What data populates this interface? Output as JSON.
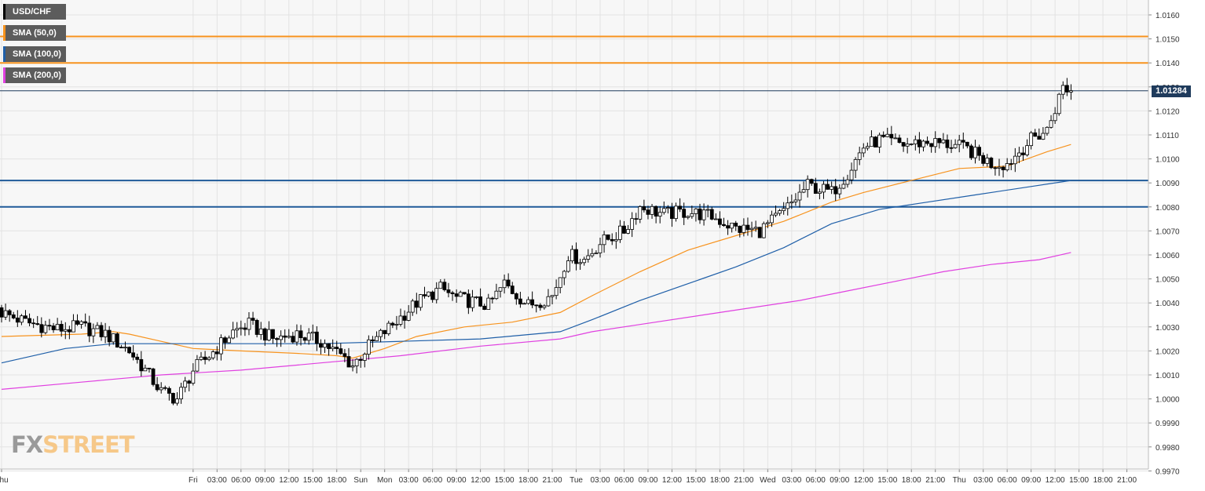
{
  "chart_data": {
    "type": "candlestick",
    "symbol": "USD/CHF",
    "legend": [
      {
        "label": "USD/CHF",
        "color": "#000000"
      },
      {
        "label": "SMA (50,0)",
        "color": "#f7931e"
      },
      {
        "label": "SMA (100,0)",
        "color": "#1f5fa8"
      },
      {
        "label": "SMA (200,0)",
        "color": "#e040e0"
      }
    ],
    "ylim": [
      0.9968,
      1.0163
    ],
    "y_ticks": [
      "1.0160",
      "1.0150",
      "1.0140",
      "1.0130",
      "1.0120",
      "1.0110",
      "1.0100",
      "1.0090",
      "1.0080",
      "1.0070",
      "1.0060",
      "1.0050",
      "1.0040",
      "1.0030",
      "1.0020",
      "1.0010",
      "1.0000",
      "0.9990",
      "0.9980",
      "0.9970"
    ],
    "x_ticks": [
      {
        "label": "Thu",
        "t": 0
      },
      {
        "label": "Fri",
        "t": 24
      },
      {
        "label": "03:00",
        "t": 27
      },
      {
        "label": "06:00",
        "t": 30
      },
      {
        "label": "09:00",
        "t": 33
      },
      {
        "label": "12:00",
        "t": 36
      },
      {
        "label": "15:00",
        "t": 39
      },
      {
        "label": "18:00",
        "t": 42
      },
      {
        "label": "Sun",
        "t": 45
      },
      {
        "label": "Mon",
        "t": 48
      },
      {
        "label": "03:00",
        "t": 51
      },
      {
        "label": "06:00",
        "t": 54
      },
      {
        "label": "09:00",
        "t": 57
      },
      {
        "label": "12:00",
        "t": 60
      },
      {
        "label": "15:00",
        "t": 63
      },
      {
        "label": "18:00",
        "t": 66
      },
      {
        "label": "21:00",
        "t": 69
      },
      {
        "label": "Tue",
        "t": 72
      },
      {
        "label": "03:00",
        "t": 75
      },
      {
        "label": "06:00",
        "t": 78
      },
      {
        "label": "09:00",
        "t": 81
      },
      {
        "label": "12:00",
        "t": 84
      },
      {
        "label": "15:00",
        "t": 87
      },
      {
        "label": "18:00",
        "t": 90
      },
      {
        "label": "21:00",
        "t": 93
      },
      {
        "label": "Wed",
        "t": 96
      },
      {
        "label": "03:00",
        "t": 99
      },
      {
        "label": "06:00",
        "t": 102
      },
      {
        "label": "09:00",
        "t": 105
      },
      {
        "label": "12:00",
        "t": 108
      },
      {
        "label": "15:00",
        "t": 111
      },
      {
        "label": "18:00",
        "t": 114
      },
      {
        "label": "21:00",
        "t": 117
      },
      {
        "label": "Thu",
        "t": 120
      },
      {
        "label": "03:00",
        "t": 123
      },
      {
        "label": "06:00",
        "t": 126
      },
      {
        "label": "09:00",
        "t": 129
      },
      {
        "label": "12:00",
        "t": 132
      },
      {
        "label": "15:00",
        "t": 135
      },
      {
        "label": "18:00",
        "t": 138
      },
      {
        "label": "21:00",
        "t": 141
      }
    ],
    "horizontal_levels": [
      {
        "value": 1.0151,
        "color": "#f7931e"
      },
      {
        "value": 1.014,
        "color": "#f7931e"
      },
      {
        "value": 1.0091,
        "color": "#1f5a99"
      },
      {
        "value": 1.008,
        "color": "#1f5a99"
      }
    ],
    "last_price": {
      "value": 1.01284,
      "label": "1.01284"
    },
    "close_anchors": [
      [
        0,
        1.0036
      ],
      [
        3,
        1.0032
      ],
      [
        7,
        1.0029
      ],
      [
        10,
        1.003
      ],
      [
        13,
        1.0027
      ],
      [
        16,
        1.002
      ],
      [
        18,
        1.0012
      ],
      [
        20,
        1.0003
      ],
      [
        22,
        1.0
      ],
      [
        24,
        1.0012
      ],
      [
        26,
        1.0018
      ],
      [
        29,
        1.0028
      ],
      [
        31,
        1.0031
      ],
      [
        34,
        1.0025
      ],
      [
        37,
        1.0027
      ],
      [
        40,
        1.0024
      ],
      [
        43,
        1.0017
      ],
      [
        44,
        1.0014
      ],
      [
        46,
        1.0022
      ],
      [
        48,
        1.0028
      ],
      [
        50,
        1.0034
      ],
      [
        52,
        1.004
      ],
      [
        55,
        1.0046
      ],
      [
        57,
        1.0042
      ],
      [
        61,
        1.0039
      ],
      [
        63,
        1.0048
      ],
      [
        66,
        1.0039
      ],
      [
        69,
        1.0043
      ],
      [
        71,
        1.006
      ],
      [
        73,
        1.0058
      ],
      [
        75,
        1.0065
      ],
      [
        78,
        1.007
      ],
      [
        80,
        1.008
      ],
      [
        83,
        1.0077
      ],
      [
        86,
        1.0078
      ],
      [
        89,
        1.0076
      ],
      [
        92,
        1.0071
      ],
      [
        95,
        1.007
      ],
      [
        98,
        1.0078
      ],
      [
        101,
        1.0089
      ],
      [
        104,
        1.0086
      ],
      [
        106,
        1.0094
      ],
      [
        108,
        1.0105
      ],
      [
        110,
        1.0108
      ],
      [
        113,
        1.0106
      ],
      [
        116,
        1.0107
      ],
      [
        119,
        1.0106
      ],
      [
        121,
        1.0104
      ],
      [
        124,
        1.0098
      ],
      [
        126,
        1.0098
      ],
      [
        129,
        1.0108
      ],
      [
        131,
        1.0112
      ],
      [
        133,
        1.013
      ],
      [
        134,
        1.01284
      ]
    ],
    "sma_50": [
      [
        0,
        1.0026
      ],
      [
        10,
        1.0027
      ],
      [
        14,
        1.0028
      ],
      [
        16,
        1.0027
      ],
      [
        20,
        1.0024
      ],
      [
        24,
        1.0021
      ],
      [
        30,
        1.002
      ],
      [
        37,
        1.0019
      ],
      [
        42,
        1.0018
      ],
      [
        44,
        1.0017
      ],
      [
        48,
        1.0021
      ],
      [
        52,
        1.0026
      ],
      [
        58,
        1.003
      ],
      [
        64,
        1.0032
      ],
      [
        70,
        1.0036
      ],
      [
        74,
        1.0043
      ],
      [
        80,
        1.0053
      ],
      [
        86,
        1.0062
      ],
      [
        92,
        1.0068
      ],
      [
        98,
        1.0074
      ],
      [
        104,
        1.0082
      ],
      [
        108,
        1.0086
      ],
      [
        114,
        1.0091
      ],
      [
        120,
        1.0096
      ],
      [
        126,
        1.0097
      ],
      [
        131,
        1.0103
      ],
      [
        134,
        1.0106
      ]
    ],
    "sma_100": [
      [
        0,
        1.0015
      ],
      [
        8,
        1.0021
      ],
      [
        14,
        1.0023
      ],
      [
        20,
        1.0023
      ],
      [
        30,
        1.0023
      ],
      [
        40,
        1.0023
      ],
      [
        50,
        1.0024
      ],
      [
        60,
        1.0025
      ],
      [
        70,
        1.0028
      ],
      [
        74,
        1.0033
      ],
      [
        80,
        1.0041
      ],
      [
        86,
        1.0048
      ],
      [
        92,
        1.0055
      ],
      [
        98,
        1.0063
      ],
      [
        104,
        1.0073
      ],
      [
        110,
        1.0079
      ],
      [
        116,
        1.0082
      ],
      [
        122,
        1.0085
      ],
      [
        128,
        1.0088
      ],
      [
        134,
        1.0091
      ]
    ],
    "sma_200": [
      [
        0,
        1.0004
      ],
      [
        10,
        1.0007
      ],
      [
        20,
        1.001
      ],
      [
        30,
        1.0012
      ],
      [
        40,
        1.0015
      ],
      [
        50,
        1.0018
      ],
      [
        60,
        1.0022
      ],
      [
        70,
        1.0025
      ],
      [
        74,
        1.0028
      ],
      [
        80,
        1.0031
      ],
      [
        90,
        1.0036
      ],
      [
        100,
        1.0041
      ],
      [
        106,
        1.0045
      ],
      [
        112,
        1.0049
      ],
      [
        118,
        1.0053
      ],
      [
        124,
        1.0056
      ],
      [
        130,
        1.0058
      ],
      [
        134,
        1.0061
      ]
    ]
  },
  "watermark": {
    "part1": "FX",
    "part2": "STREET"
  }
}
